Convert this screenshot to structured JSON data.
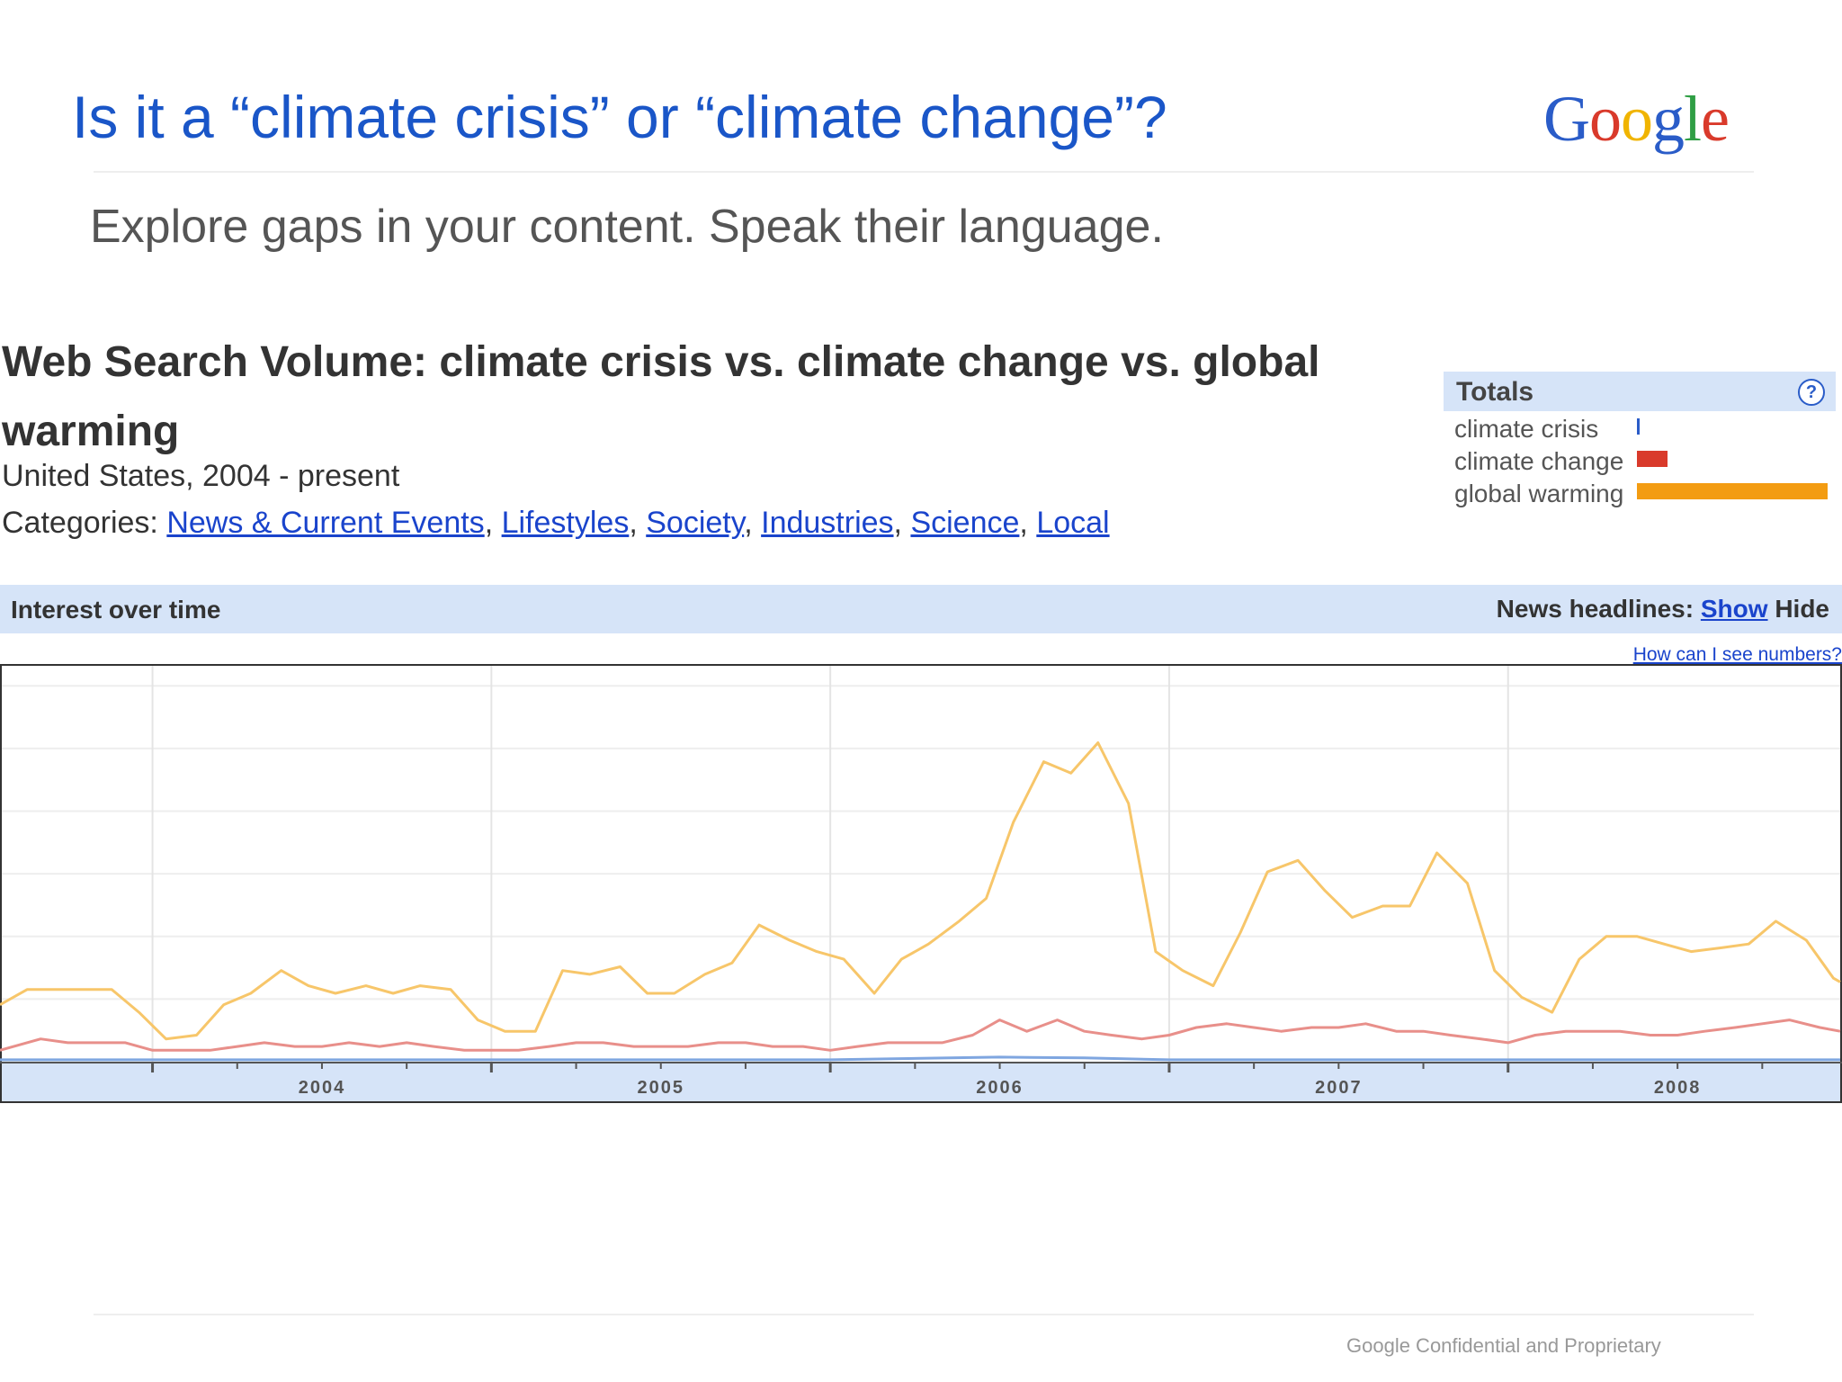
{
  "slide": {
    "title": "Is it a “climate crisis” or “climate change”?",
    "subtitle": "Explore gaps in your content. Speak their language.",
    "footer": "Google Confidential and Proprietary",
    "logo": {
      "letters": [
        "G",
        "o",
        "o",
        "g",
        "l",
        "e"
      ],
      "colors": [
        "#2a5cc8",
        "#d93a2b",
        "#f0b400",
        "#2a5cc8",
        "#2f9e44",
        "#d93a2b"
      ]
    }
  },
  "trends": {
    "title": "Web Search Volume: climate crisis vs. climate change vs. global warming",
    "region": "United States, 2004 - present",
    "categories_label": "Categories:",
    "categories": [
      "News & Current Events",
      "Lifestyles",
      "Society",
      "Industries",
      "Science",
      "Local"
    ],
    "totals": {
      "header": "Totals",
      "help_icon": "help-circle-icon",
      "items": [
        {
          "label": "climate crisis",
          "value": 0.015,
          "color": "#2a5cc8"
        },
        {
          "label": "climate change",
          "value": 0.16,
          "color": "#d93a2b"
        },
        {
          "label": "global warming",
          "value": 1.0,
          "color": "#f39c12"
        }
      ]
    },
    "interest_bar": {
      "label": "Interest over time",
      "news_label": "News headlines:",
      "show": "Show",
      "hide": "Hide"
    },
    "numbers_link": "How can I see numbers?"
  },
  "chart_data": {
    "type": "line",
    "x_ticks": [
      "2004",
      "2005",
      "2006",
      "2007",
      "2008"
    ],
    "x_range": [
      2003.55,
      2008.98
    ],
    "y_range": [
      0,
      100
    ],
    "grid": true,
    "legend_placement": "none",
    "series": [
      {
        "name": "climate crisis",
        "color": "#7fa6e0",
        "x": [
          2003.55,
          2005.0,
          2006.0,
          2006.5,
          2006.75,
          2007.0,
          2008.0,
          2008.98
        ],
        "y": [
          0.5,
          0.5,
          0.5,
          1.2,
          1.0,
          0.5,
          0.5,
          0.5
        ]
      },
      {
        "name": "climate change",
        "color": "#e88f8a",
        "x": [
          2003.55,
          2003.67,
          2003.75,
          2003.92,
          2004.0,
          2004.08,
          2004.17,
          2004.25,
          2004.33,
          2004.42,
          2004.5,
          2004.58,
          2004.67,
          2004.75,
          2004.83,
          2004.92,
          2005.0,
          2005.08,
          2005.17,
          2005.25,
          2005.33,
          2005.42,
          2005.5,
          2005.58,
          2005.67,
          2005.75,
          2005.83,
          2005.92,
          2006.0,
          2006.08,
          2006.17,
          2006.25,
          2006.33,
          2006.42,
          2006.5,
          2006.58,
          2006.67,
          2006.75,
          2006.83,
          2006.92,
          2007.0,
          2007.08,
          2007.17,
          2007.25,
          2007.33,
          2007.42,
          2007.5,
          2007.58,
          2007.67,
          2007.75,
          2007.83,
          2007.92,
          2008.0,
          2008.08,
          2008.17,
          2008.25,
          2008.33,
          2008.42,
          2008.5,
          2008.58,
          2008.67,
          2008.75,
          2008.83,
          2008.92,
          2008.98
        ],
        "y": [
          3,
          6,
          5,
          5,
          3,
          3,
          3,
          4,
          5,
          4,
          4,
          5,
          4,
          5,
          4,
          3,
          3,
          3,
          4,
          5,
          5,
          4,
          4,
          4,
          5,
          5,
          4,
          4,
          3,
          4,
          5,
          5,
          5,
          7,
          11,
          8,
          11,
          8,
          7,
          6,
          7,
          9,
          10,
          9,
          8,
          9,
          9,
          10,
          8,
          8,
          7,
          6,
          5,
          7,
          8,
          8,
          8,
          7,
          7,
          8,
          9,
          10,
          11,
          9,
          8
        ]
      },
      {
        "name": "global warming",
        "color": "#f7c66a",
        "x": [
          2003.55,
          2003.63,
          2003.71,
          2003.79,
          2003.88,
          2003.96,
          2004.04,
          2004.13,
          2004.21,
          2004.29,
          2004.38,
          2004.46,
          2004.54,
          2004.63,
          2004.71,
          2004.79,
          2004.88,
          2004.96,
          2005.04,
          2005.13,
          2005.21,
          2005.29,
          2005.38,
          2005.46,
          2005.54,
          2005.63,
          2005.71,
          2005.79,
          2005.88,
          2005.96,
          2006.04,
          2006.13,
          2006.21,
          2006.29,
          2006.38,
          2006.46,
          2006.54,
          2006.63,
          2006.71,
          2006.79,
          2006.88,
          2006.96,
          2007.04,
          2007.13,
          2007.21,
          2007.29,
          2007.38,
          2007.46,
          2007.54,
          2007.63,
          2007.71,
          2007.79,
          2007.88,
          2007.96,
          2008.04,
          2008.13,
          2008.21,
          2008.29,
          2008.38,
          2008.46,
          2008.54,
          2008.63,
          2008.71,
          2008.79,
          2008.88,
          2008.96,
          2008.98
        ],
        "y": [
          15,
          19,
          19,
          19,
          19,
          13,
          6,
          7,
          15,
          18,
          24,
          20,
          18,
          20,
          18,
          20,
          19,
          11,
          8,
          8,
          24,
          23,
          25,
          18,
          18,
          23,
          26,
          36,
          32,
          29,
          27,
          18,
          27,
          31,
          37,
          43,
          63,
          79,
          76,
          84,
          68,
          29,
          24,
          20,
          34,
          50,
          53,
          45,
          38,
          41,
          41,
          55,
          47,
          24,
          17,
          13,
          27,
          33,
          33,
          31,
          29,
          30,
          31,
          37,
          32,
          22,
          21
        ]
      }
    ]
  }
}
